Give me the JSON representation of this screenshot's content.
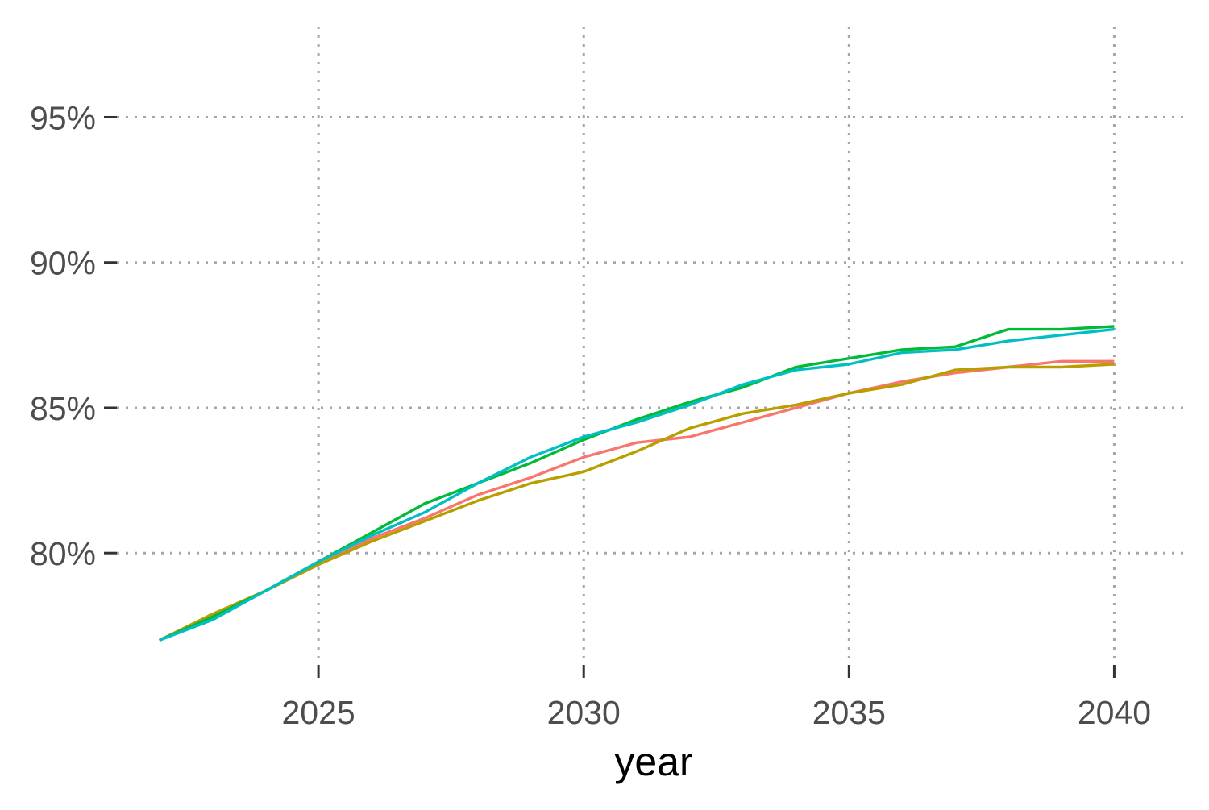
{
  "chart_data": {
    "type": "line",
    "title": "",
    "xlabel": "year",
    "ylabel": "",
    "xlim": [
      2021.2,
      2041.3
    ],
    "ylim": [
      0.7615,
      0.9812
    ],
    "x_ticks": [
      2025,
      2030,
      2035,
      2040
    ],
    "x_tick_labels": [
      "2025",
      "2030",
      "2035",
      "2040"
    ],
    "y_ticks": [
      0.8,
      0.85,
      0.9,
      0.95
    ],
    "y_tick_labels": [
      "80%",
      "85%",
      "90%",
      "95%"
    ],
    "y_format": "percent",
    "grid": true,
    "grid_style": "dotted",
    "legend": "none",
    "x": [
      2022,
      2023,
      2024,
      2025,
      2026,
      2027,
      2028,
      2029,
      2030,
      2031,
      2032,
      2033,
      2034,
      2035,
      2036,
      2037,
      2038,
      2039,
      2040
    ],
    "series": [
      {
        "color": "#F8766D",
        "values": [
          0.77,
          0.778,
          0.787,
          0.796,
          0.805,
          0.812,
          0.82,
          0.826,
          0.833,
          0.838,
          0.84,
          0.845,
          0.85,
          0.855,
          0.859,
          0.862,
          0.864,
          0.866,
          0.866
        ]
      },
      {
        "color": "#B79F00",
        "values": [
          0.77,
          0.779,
          0.787,
          0.796,
          0.804,
          0.811,
          0.818,
          0.824,
          0.828,
          0.835,
          0.843,
          0.848,
          0.851,
          0.855,
          0.858,
          0.863,
          0.864,
          0.864,
          0.865
        ]
      },
      {
        "color": "#00BA38",
        "values": [
          0.77,
          0.778,
          0.787,
          0.797,
          0.807,
          0.817,
          0.824,
          0.831,
          0.839,
          0.846,
          0.852,
          0.857,
          0.864,
          0.867,
          0.87,
          0.871,
          0.877,
          0.877,
          0.878
        ]
      },
      {
        "color": "#00BFC4",
        "values": [
          0.77,
          0.777,
          0.787,
          0.797,
          0.806,
          0.814,
          0.824,
          0.833,
          0.84,
          0.845,
          0.851,
          0.858,
          0.863,
          0.865,
          0.869,
          0.87,
          0.873,
          0.875,
          0.877
        ]
      }
    ]
  }
}
